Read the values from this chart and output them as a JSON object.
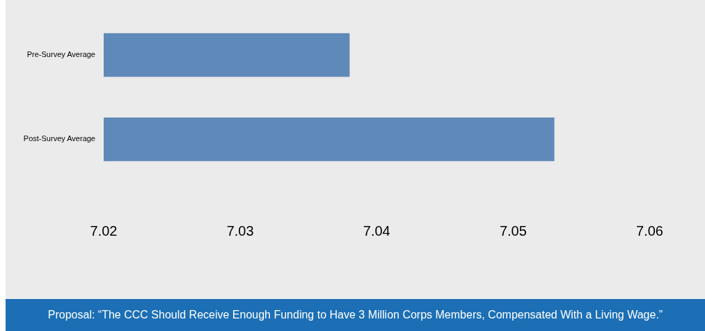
{
  "chart_data": {
    "type": "bar",
    "orientation": "horizontal",
    "categories": [
      "Pre-Survey Average",
      "Post-Survey Average"
    ],
    "values": [
      7.038,
      7.053
    ],
    "color": "#5f89b8",
    "xlim": [
      7.02,
      7.06
    ],
    "xticks": [
      7.02,
      7.03,
      7.04,
      7.05,
      7.06
    ],
    "grid": false,
    "legend": false,
    "annotations": [
      "Proposal: “The CCC Should Receive Enough Funding to Have 3 Million Corps Members, Compensated With a Living Wage.”"
    ]
  }
}
